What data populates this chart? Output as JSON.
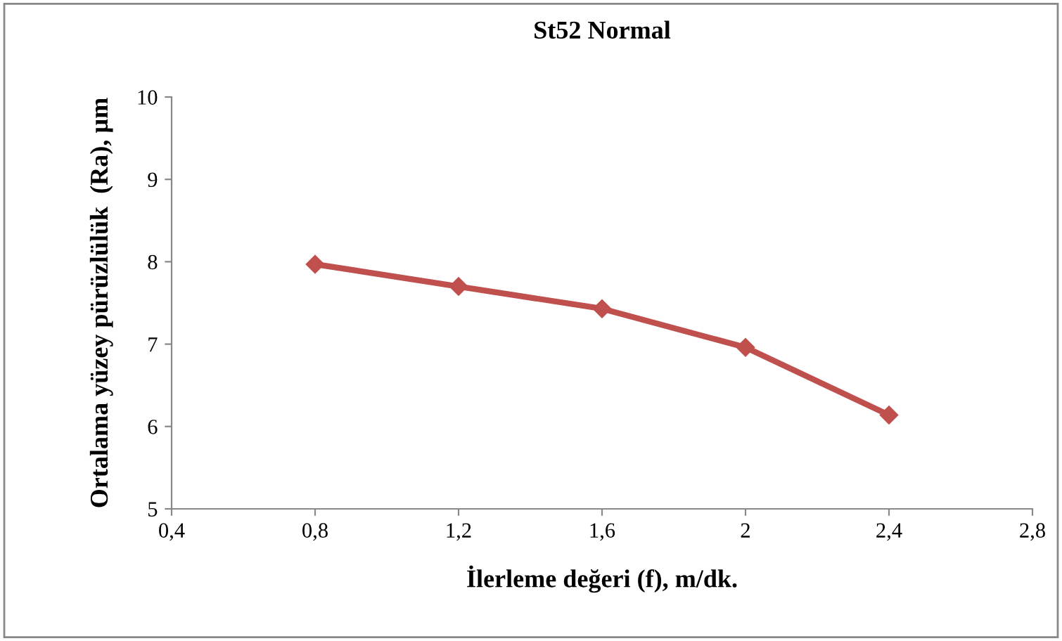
{
  "chart_data": {
    "type": "line",
    "title": "St52 Normal",
    "xlabel": "İlerleme değeri (f), m/dk.",
    "ylabel": "Ortalama yüzey pürüzlülük  (Ra), µm",
    "x": [
      0.8,
      1.2,
      1.6,
      2.0,
      2.4
    ],
    "series": [
      {
        "color": "#c0504d",
        "values": [
          7.97,
          7.7,
          7.43,
          6.96,
          6.14
        ]
      }
    ],
    "xlim": [
      0.4,
      2.8
    ],
    "xticks": [
      {
        "value": 0.4,
        "label": "0,4"
      },
      {
        "value": 0.8,
        "label": "0,8"
      },
      {
        "value": 1.2,
        "label": "1,2"
      },
      {
        "value": 1.6,
        "label": "1,6"
      },
      2,
      {
        "value": 2.4,
        "label": "2,4"
      },
      {
        "value": 2.8,
        "label": "2,8"
      }
    ],
    "ylim": [
      5,
      10
    ],
    "yticks": [
      5,
      6,
      7,
      8,
      9,
      10
    ],
    "grid": false,
    "legend": false,
    "marker": "diamond",
    "line_style": "solid"
  }
}
